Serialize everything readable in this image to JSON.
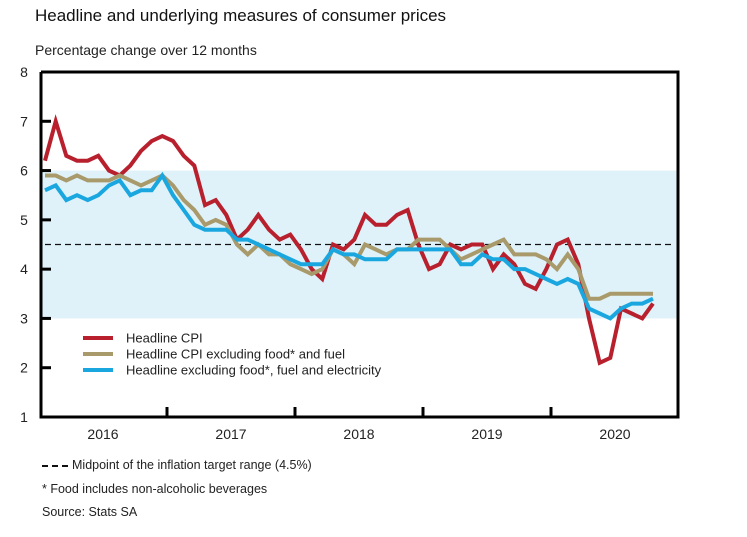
{
  "title": "Headline and underlying measures of consumer prices",
  "subtitle": "Percentage change over 12 months",
  "footnotes": {
    "midpoint_label": "Midpoint of the inflation target range (4.5%)",
    "food_note": "* Food includes non-alcoholic beverages",
    "source": "Source: Stats SA"
  },
  "chart_data": {
    "type": "line",
    "title": "Headline and underlying measures of consumer prices",
    "ylabel": "Percentage change over 12 months",
    "xlabel": "",
    "ylim": [
      1,
      8
    ],
    "yticks": [
      1,
      2,
      3,
      4,
      5,
      6,
      7,
      8
    ],
    "xlim_months": [
      0,
      60
    ],
    "x_start": "2016-01",
    "x_end": "2020-10",
    "year_labels": [
      "2016",
      "2017",
      "2018",
      "2019",
      "2020"
    ],
    "target_band": {
      "low": 3,
      "high": 6,
      "color": "#dff2fa"
    },
    "reference_line": {
      "value": 4.5,
      "style": "dashed",
      "label": "Midpoint of the inflation target range (4.5%)"
    },
    "legend_position": "lower-left",
    "grid": false,
    "series": [
      {
        "name": "Headline CPI",
        "color": "#b8202d",
        "values": [
          6.2,
          7.0,
          6.3,
          6.2,
          6.2,
          6.3,
          6.0,
          5.9,
          6.1,
          6.4,
          6.6,
          6.7,
          6.6,
          6.3,
          6.1,
          5.3,
          5.4,
          5.1,
          4.6,
          4.8,
          5.1,
          4.8,
          4.6,
          4.7,
          4.4,
          4.0,
          3.8,
          4.5,
          4.4,
          4.6,
          5.1,
          4.9,
          4.9,
          5.1,
          5.2,
          4.5,
          4.0,
          4.1,
          4.5,
          4.4,
          4.5,
          4.5,
          4.0,
          4.3,
          4.1,
          3.7,
          3.6,
          4.0,
          4.5,
          4.6,
          4.1,
          3.0,
          2.1,
          2.2,
          3.2,
          3.1,
          3.0,
          3.3
        ]
      },
      {
        "name": "Headline CPI excluding food* and fuel",
        "color": "#a99a6c",
        "values": [
          5.9,
          5.9,
          5.8,
          5.9,
          5.8,
          5.8,
          5.8,
          5.9,
          5.8,
          5.7,
          5.8,
          5.9,
          5.7,
          5.4,
          5.2,
          4.9,
          5.0,
          4.9,
          4.5,
          4.3,
          4.5,
          4.3,
          4.3,
          4.1,
          4.0,
          3.9,
          4.0,
          4.4,
          4.3,
          4.1,
          4.5,
          4.4,
          4.3,
          4.4,
          4.4,
          4.6,
          4.6,
          4.6,
          4.4,
          4.2,
          4.3,
          4.4,
          4.5,
          4.6,
          4.3,
          4.3,
          4.3,
          4.2,
          4.0,
          4.3,
          4.0,
          3.4,
          3.4,
          3.5,
          3.5,
          3.5,
          3.5,
          3.5
        ]
      },
      {
        "name": "Headline excluding food*, fuel and electricity",
        "color": "#1aa7e0",
        "values": [
          5.6,
          5.7,
          5.4,
          5.5,
          5.4,
          5.5,
          5.7,
          5.8,
          5.5,
          5.6,
          5.6,
          5.9,
          5.5,
          5.2,
          4.9,
          4.8,
          4.8,
          4.8,
          4.6,
          4.6,
          4.5,
          4.4,
          4.3,
          4.2,
          4.1,
          4.1,
          4.1,
          4.4,
          4.3,
          4.3,
          4.2,
          4.2,
          4.2,
          4.4,
          4.4,
          4.4,
          4.4,
          4.4,
          4.4,
          4.1,
          4.1,
          4.3,
          4.2,
          4.2,
          4.0,
          4.0,
          3.9,
          3.8,
          3.7,
          3.8,
          3.7,
          3.2,
          3.1,
          3.0,
          3.2,
          3.3,
          3.3,
          3.4
        ]
      }
    ]
  }
}
